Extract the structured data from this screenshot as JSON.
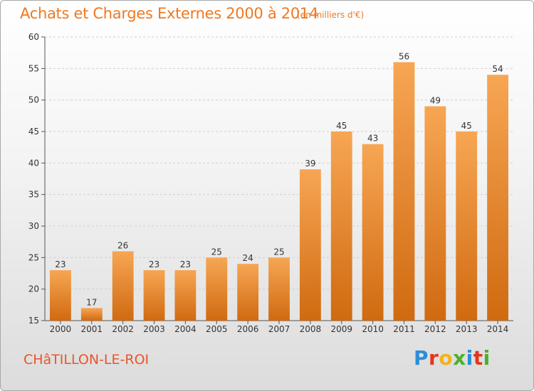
{
  "header": {
    "title": "Achats et Charges Externes 2000 à 2014",
    "subtitle": "(en milliers d'€)"
  },
  "footer": {
    "place": "CHâTILLON-LE-ROI",
    "brand": "Proxiti",
    "brand_colors": [
      "#2a8fd6",
      "#e2361c",
      "#f3b21a",
      "#4caf2a",
      "#2a8fd6",
      "#e2361c",
      "#4caf2a"
    ]
  },
  "colors": {
    "bar_light": "#f7a654",
    "bar_dark": "#d06a10",
    "text": "#f07820"
  },
  "chart_data": {
    "type": "bar",
    "title": "Achats et Charges Externes 2000 à 2014",
    "subtitle": "(en milliers d'€)",
    "categories": [
      "2000",
      "2001",
      "2002",
      "2003",
      "2004",
      "2005",
      "2006",
      "2007",
      "2008",
      "2009",
      "2010",
      "2011",
      "2012",
      "2013",
      "2014"
    ],
    "values": [
      23,
      17,
      26,
      23,
      23,
      25,
      24,
      25,
      39,
      45,
      43,
      56,
      49,
      45,
      54
    ],
    "ylim": [
      15,
      60
    ],
    "yticks": [
      15,
      20,
      25,
      30,
      35,
      40,
      45,
      50,
      55,
      60
    ],
    "grid": true,
    "legend": "none"
  }
}
